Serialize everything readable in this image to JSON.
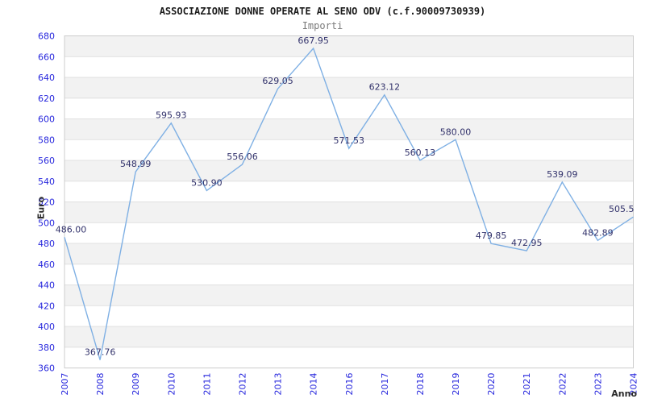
{
  "header": {
    "title": "ASSOCIAZIONE DONNE OPERATE AL SENO ODV (c.f.90009730939)",
    "subtitle": "Importi"
  },
  "axes": {
    "y_name": "Euro",
    "x_name": "Anno"
  },
  "chart_data": {
    "type": "line",
    "title": "ASSOCIAZIONE DONNE OPERATE AL SENO ODV (c.f.90009730939)",
    "subtitle": "Importi",
    "xlabel": "Anno",
    "ylabel": "Euro",
    "ylim": [
      360,
      680
    ],
    "ytick_step": 20,
    "grid": "horizontal-ticks-with-alternating-bands",
    "legend_position": "none",
    "markers": "none",
    "categories": [
      "2007",
      "2008",
      "2009",
      "2010",
      "2011",
      "2012",
      "2013",
      "2014",
      "2016",
      "2017",
      "2018",
      "2019",
      "2020",
      "2021",
      "2022",
      "2023",
      "2024"
    ],
    "values": [
      486.0,
      367.76,
      548.99,
      595.93,
      530.9,
      556.06,
      629.05,
      667.95,
      571.53,
      623.12,
      560.13,
      580.0,
      479.85,
      472.95,
      539.09,
      482.89,
      505.5
    ],
    "point_labels": [
      "486.00",
      "367.76",
      "548.99",
      "595.93",
      "530.90",
      "556.06",
      "629.05",
      "667.95",
      "571.53",
      "623.12",
      "560.13",
      "580.00",
      "479.85",
      "472.95",
      "539.09",
      "482.89",
      "505.5"
    ],
    "colors": {
      "line": "#7fb0e4",
      "tick_label": "#2727dd",
      "data_label": "#32326b",
      "band": "#f2f2f2",
      "grid": "#e0e0e0",
      "border": "#cccccc"
    }
  }
}
